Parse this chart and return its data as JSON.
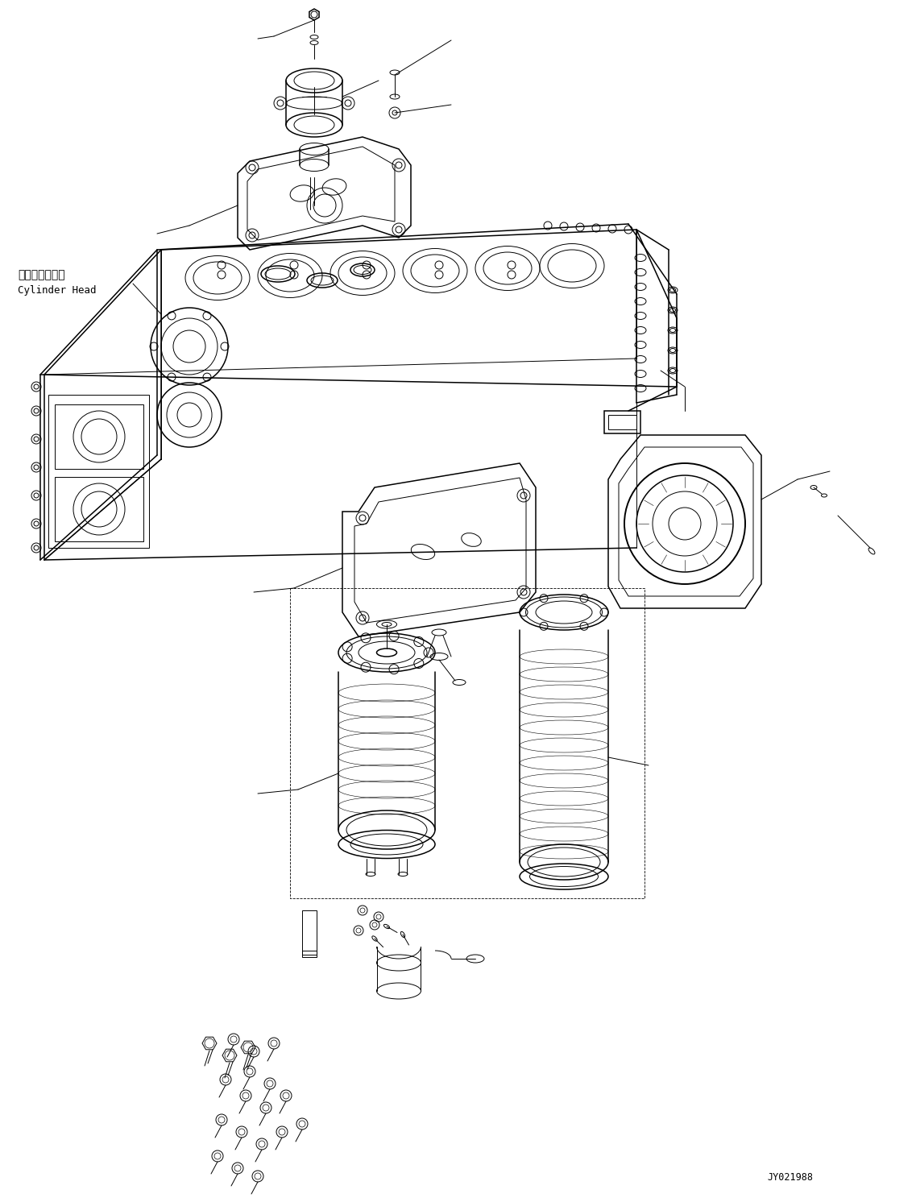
{
  "figsize": [
    11.37,
    14.92
  ],
  "dpi": 100,
  "background_color": "#ffffff",
  "label_japanese": "シリンダヘッド",
  "label_english": "Cylinder Head",
  "part_number": "JY021988"
}
